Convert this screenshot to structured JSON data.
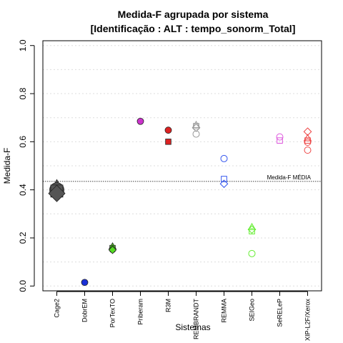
{
  "chart_data": {
    "type": "scatter",
    "title_lines": [
      "Medida-F agrupada por sistema",
      "[Identificação : ALT : tempo_sonorm_Total]"
    ],
    "xlabel": "Sistemas",
    "ylabel": "Medida-F",
    "ylim": [
      -0.02,
      1.02
    ],
    "yticks": [
      0.0,
      0.2,
      0.4,
      0.6,
      0.8,
      1.0
    ],
    "ytick_labels": [
      "0.0",
      "0.2",
      "0.4",
      "0.6",
      "0.8",
      "1.0"
    ],
    "minor_gridlines": [
      0.1,
      0.3,
      0.5,
      0.7,
      0.9
    ],
    "categories": [
      "Cage2",
      "DobrEM",
      "PorTexTO",
      "Priberam",
      "R3M",
      "REMBRANDT",
      "REMMA",
      "SEIGeo",
      "SeRELeP",
      "XIP-L2F/Xerox"
    ],
    "reference_line": {
      "y": 0.435,
      "label": "Medida-F MÉDIA"
    },
    "points": [
      {
        "category": "Cage2",
        "y": 0.41,
        "marker": "triangle",
        "color": "#555555",
        "size": "large",
        "filled": true
      },
      {
        "category": "Cage2",
        "y": 0.4,
        "marker": "circle",
        "color": "#555555",
        "size": "large",
        "filled": true
      },
      {
        "category": "Cage2",
        "y": 0.395,
        "marker": "square",
        "color": "#555555",
        "size": "large",
        "filled": true
      },
      {
        "category": "Cage2",
        "y": 0.385,
        "marker": "diamond",
        "color": "#555555",
        "size": "large",
        "filled": true
      },
      {
        "category": "DobrEM",
        "y": 0.015,
        "marker": "circle",
        "color": "#1a2fd6",
        "size": "normal",
        "filled": true
      },
      {
        "category": "PorTexTO",
        "y": 0.165,
        "marker": "triangle",
        "color": "#55dd22",
        "size": "normal",
        "filled": true
      },
      {
        "category": "PorTexTO",
        "y": 0.158,
        "marker": "square",
        "color": "#55dd22",
        "size": "normal",
        "filled": true
      },
      {
        "category": "PorTexTO",
        "y": 0.152,
        "marker": "circle",
        "color": "#55dd22",
        "size": "normal",
        "filled": true
      },
      {
        "category": "PorTexTO",
        "y": 0.15,
        "marker": "diamond",
        "color": "#55dd22",
        "size": "normal",
        "filled": true
      },
      {
        "category": "Priberam",
        "y": 0.685,
        "marker": "circle",
        "color": "#cc33cc",
        "size": "normal",
        "filled": true
      },
      {
        "category": "R3M",
        "y": 0.648,
        "marker": "circle",
        "color": "#dd2222",
        "size": "normal",
        "filled": true
      },
      {
        "category": "R3M",
        "y": 0.6,
        "marker": "square",
        "color": "#dd2222",
        "size": "normal",
        "filled": true
      },
      {
        "category": "REMBRANDT",
        "y": 0.67,
        "marker": "triangle",
        "color": "#999999",
        "size": "normal",
        "filled": false
      },
      {
        "category": "REMBRANDT",
        "y": 0.665,
        "marker": "square",
        "color": "#999999",
        "size": "normal",
        "filled": false
      },
      {
        "category": "REMBRANDT",
        "y": 0.658,
        "marker": "diamond",
        "color": "#999999",
        "size": "normal",
        "filled": false
      },
      {
        "category": "REMBRANDT",
        "y": 0.632,
        "marker": "circle",
        "color": "#999999",
        "size": "normal",
        "filled": false
      },
      {
        "category": "REMMA",
        "y": 0.53,
        "marker": "circle",
        "color": "#3355ee",
        "size": "normal",
        "filled": false
      },
      {
        "category": "REMMA",
        "y": 0.445,
        "marker": "square",
        "color": "#3355ee",
        "size": "normal",
        "filled": false
      },
      {
        "category": "REMMA",
        "y": 0.425,
        "marker": "diamond",
        "color": "#3355ee",
        "size": "normal",
        "filled": false
      },
      {
        "category": "SEIGeo",
        "y": 0.245,
        "marker": "triangle",
        "color": "#66ee33",
        "size": "normal",
        "filled": false
      },
      {
        "category": "SEIGeo",
        "y": 0.235,
        "marker": "diamond",
        "color": "#66ee33",
        "size": "normal",
        "filled": false
      },
      {
        "category": "SEIGeo",
        "y": 0.228,
        "marker": "square",
        "color": "#66ee33",
        "size": "normal",
        "filled": false
      },
      {
        "category": "SEIGeo",
        "y": 0.135,
        "marker": "circle",
        "color": "#66ee33",
        "size": "normal",
        "filled": false
      },
      {
        "category": "SeRELeP",
        "y": 0.62,
        "marker": "circle",
        "color": "#dd55dd",
        "size": "normal",
        "filled": false
      },
      {
        "category": "SeRELeP",
        "y": 0.605,
        "marker": "square",
        "color": "#dd55dd",
        "size": "normal",
        "filled": false
      },
      {
        "category": "XIP-L2F/Xerox",
        "y": 0.642,
        "marker": "diamond",
        "color": "#ee4444",
        "size": "normal",
        "filled": false
      },
      {
        "category": "XIP-L2F/Xerox",
        "y": 0.615,
        "marker": "triangle",
        "color": "#ee4444",
        "size": "normal",
        "filled": false
      },
      {
        "category": "XIP-L2F/Xerox",
        "y": 0.605,
        "marker": "square",
        "color": "#ee4444",
        "size": "normal",
        "filled": false
      },
      {
        "category": "XIP-L2F/Xerox",
        "y": 0.598,
        "marker": "circle",
        "color": "#ee4444",
        "size": "normal",
        "filled": false
      },
      {
        "category": "XIP-L2F/Xerox",
        "y": 0.565,
        "marker": "circle",
        "color": "#ee4444",
        "size": "normal",
        "filled": false
      }
    ],
    "grid": true,
    "legend": "none"
  }
}
